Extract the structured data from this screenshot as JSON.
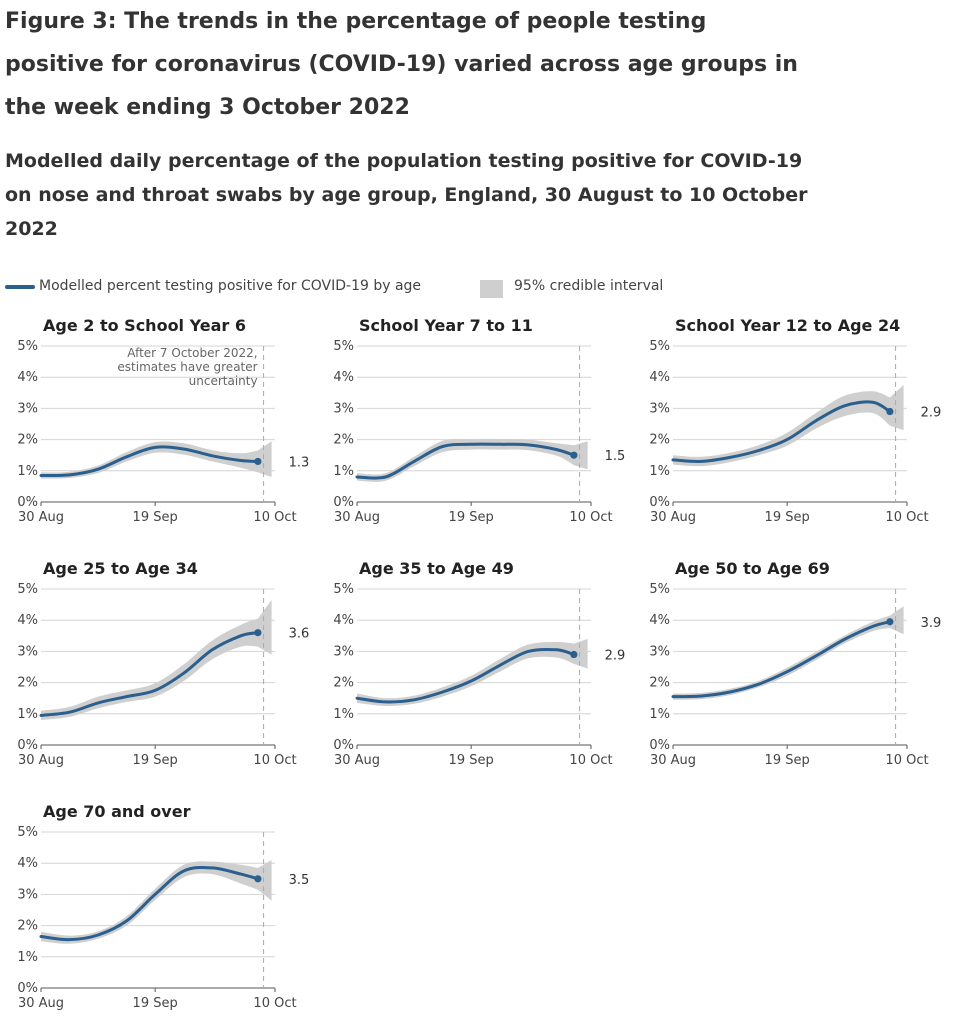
{
  "figure": {
    "title": "Figure 3: The trends in the percentage of people testing positive for coronavirus (COVID-19) varied across age groups in the week ending 3 October 2022",
    "subtitle": "Modelled daily percentage of the population testing positive for COVID-19 on nose and throat swabs by age group, England, 30 August to 10 October 2022"
  },
  "legend": {
    "line_label": "Modelled percent testing positive for COVID-19 by age",
    "band_label": "95% credible interval"
  },
  "colors": {
    "line": "#2b5f8e",
    "band": "#cfcfcf",
    "grid": "#d4d4d4",
    "axis": "#555555",
    "dashed": "#aaaaaa"
  },
  "chart_data": {
    "type": "line",
    "x_axis": {
      "start_label": "30 Aug",
      "mid_label": "19 Sep",
      "end_label": "10 Oct",
      "days_total": 41,
      "mid_day": 20,
      "last_estimate_day": 39
    },
    "y_ticks": [
      "0%",
      "1%",
      "2%",
      "3%",
      "4%",
      "5%"
    ],
    "ylim": [
      0,
      5
    ],
    "uncertainty_note": {
      "lines": [
        "After 7 October 2022,",
        "estimates have greater",
        "uncertainty"
      ],
      "marker_day": 38
    },
    "panels": [
      {
        "title": "Age 2 to School Year 6",
        "end_value_label": "1.3",
        "days": [
          0,
          5,
          10,
          15,
          20,
          25,
          30,
          35,
          38
        ],
        "values": [
          0.85,
          0.87,
          1.05,
          1.45,
          1.75,
          1.7,
          1.48,
          1.33,
          1.3
        ],
        "lower": [
          0.75,
          0.77,
          0.93,
          1.3,
          1.58,
          1.52,
          1.3,
          1.1,
          0.95
        ],
        "upper": [
          0.95,
          0.97,
          1.17,
          1.6,
          1.92,
          1.88,
          1.66,
          1.56,
          1.65
        ],
        "band_end_lower": 0.8,
        "band_end_upper": 1.95,
        "show_note": true
      },
      {
        "title": "School Year 7 to 11",
        "end_value_label": "1.5",
        "days": [
          0,
          5,
          10,
          15,
          20,
          25,
          30,
          35,
          38
        ],
        "values": [
          0.8,
          0.8,
          1.3,
          1.78,
          1.85,
          1.85,
          1.83,
          1.68,
          1.5
        ],
        "lower": [
          0.68,
          0.68,
          1.15,
          1.6,
          1.68,
          1.68,
          1.66,
          1.48,
          1.18
        ],
        "upper": [
          0.92,
          0.92,
          1.45,
          1.96,
          2.02,
          2.02,
          2.0,
          1.88,
          1.82
        ],
        "band_end_lower": 1.05,
        "band_end_upper": 1.95,
        "show_note": false
      },
      {
        "title": "School Year 12 to Age 24",
        "end_value_label": "2.9",
        "days": [
          0,
          5,
          10,
          15,
          20,
          25,
          30,
          35,
          38
        ],
        "values": [
          1.35,
          1.3,
          1.43,
          1.65,
          2.0,
          2.6,
          3.08,
          3.2,
          2.9
        ],
        "lower": [
          1.2,
          1.15,
          1.28,
          1.5,
          1.8,
          2.35,
          2.75,
          2.85,
          2.45
        ],
        "upper": [
          1.5,
          1.45,
          1.58,
          1.82,
          2.22,
          2.85,
          3.4,
          3.55,
          3.35
        ],
        "band_end_lower": 2.3,
        "band_end_upper": 3.75,
        "show_note": false
      },
      {
        "title": "Age 25 to Age 34",
        "end_value_label": "3.6",
        "days": [
          0,
          5,
          10,
          15,
          20,
          25,
          30,
          35,
          38
        ],
        "values": [
          0.95,
          1.05,
          1.35,
          1.55,
          1.75,
          2.3,
          3.05,
          3.5,
          3.6
        ],
        "lower": [
          0.8,
          0.9,
          1.18,
          1.38,
          1.55,
          2.05,
          2.75,
          3.15,
          3.15
        ],
        "upper": [
          1.1,
          1.22,
          1.55,
          1.75,
          1.98,
          2.58,
          3.35,
          3.85,
          4.05
        ],
        "band_end_lower": 2.9,
        "band_end_upper": 4.65,
        "show_note": false
      },
      {
        "title": "Age 35 to Age 49",
        "end_value_label": "2.9",
        "days": [
          0,
          5,
          10,
          15,
          20,
          25,
          30,
          35,
          38
        ],
        "values": [
          1.5,
          1.38,
          1.45,
          1.7,
          2.05,
          2.55,
          3.0,
          3.05,
          2.9
        ],
        "lower": [
          1.35,
          1.25,
          1.32,
          1.55,
          1.88,
          2.35,
          2.78,
          2.8,
          2.6
        ],
        "upper": [
          1.65,
          1.5,
          1.58,
          1.85,
          2.22,
          2.75,
          3.22,
          3.3,
          3.25
        ],
        "band_end_lower": 2.45,
        "band_end_upper": 3.4,
        "show_note": false
      },
      {
        "title": "Age 50 to Age 69",
        "end_value_label": "3.9",
        "days": [
          0,
          5,
          10,
          15,
          20,
          25,
          30,
          35,
          38
        ],
        "values": [
          1.55,
          1.57,
          1.7,
          1.95,
          2.35,
          2.85,
          3.38,
          3.8,
          3.95
        ],
        "lower": [
          1.45,
          1.47,
          1.6,
          1.85,
          2.22,
          2.72,
          3.25,
          3.65,
          3.75
        ],
        "upper": [
          1.65,
          1.67,
          1.8,
          2.05,
          2.48,
          2.98,
          3.5,
          3.95,
          4.15
        ],
        "band_end_lower": 3.55,
        "band_end_upper": 4.45,
        "show_note": false
      },
      {
        "title": "Age 70 and over",
        "end_value_label": "3.5",
        "days": [
          0,
          5,
          10,
          15,
          20,
          25,
          30,
          35,
          38
        ],
        "values": [
          1.65,
          1.55,
          1.7,
          2.15,
          3.0,
          3.75,
          3.85,
          3.65,
          3.5
        ],
        "lower": [
          1.5,
          1.42,
          1.58,
          2.0,
          2.82,
          3.55,
          3.65,
          3.35,
          3.15
        ],
        "upper": [
          1.8,
          1.68,
          1.82,
          2.3,
          3.18,
          3.95,
          4.05,
          3.95,
          3.85
        ],
        "band_end_lower": 2.8,
        "band_end_upper": 4.1,
        "show_note": false
      }
    ]
  }
}
